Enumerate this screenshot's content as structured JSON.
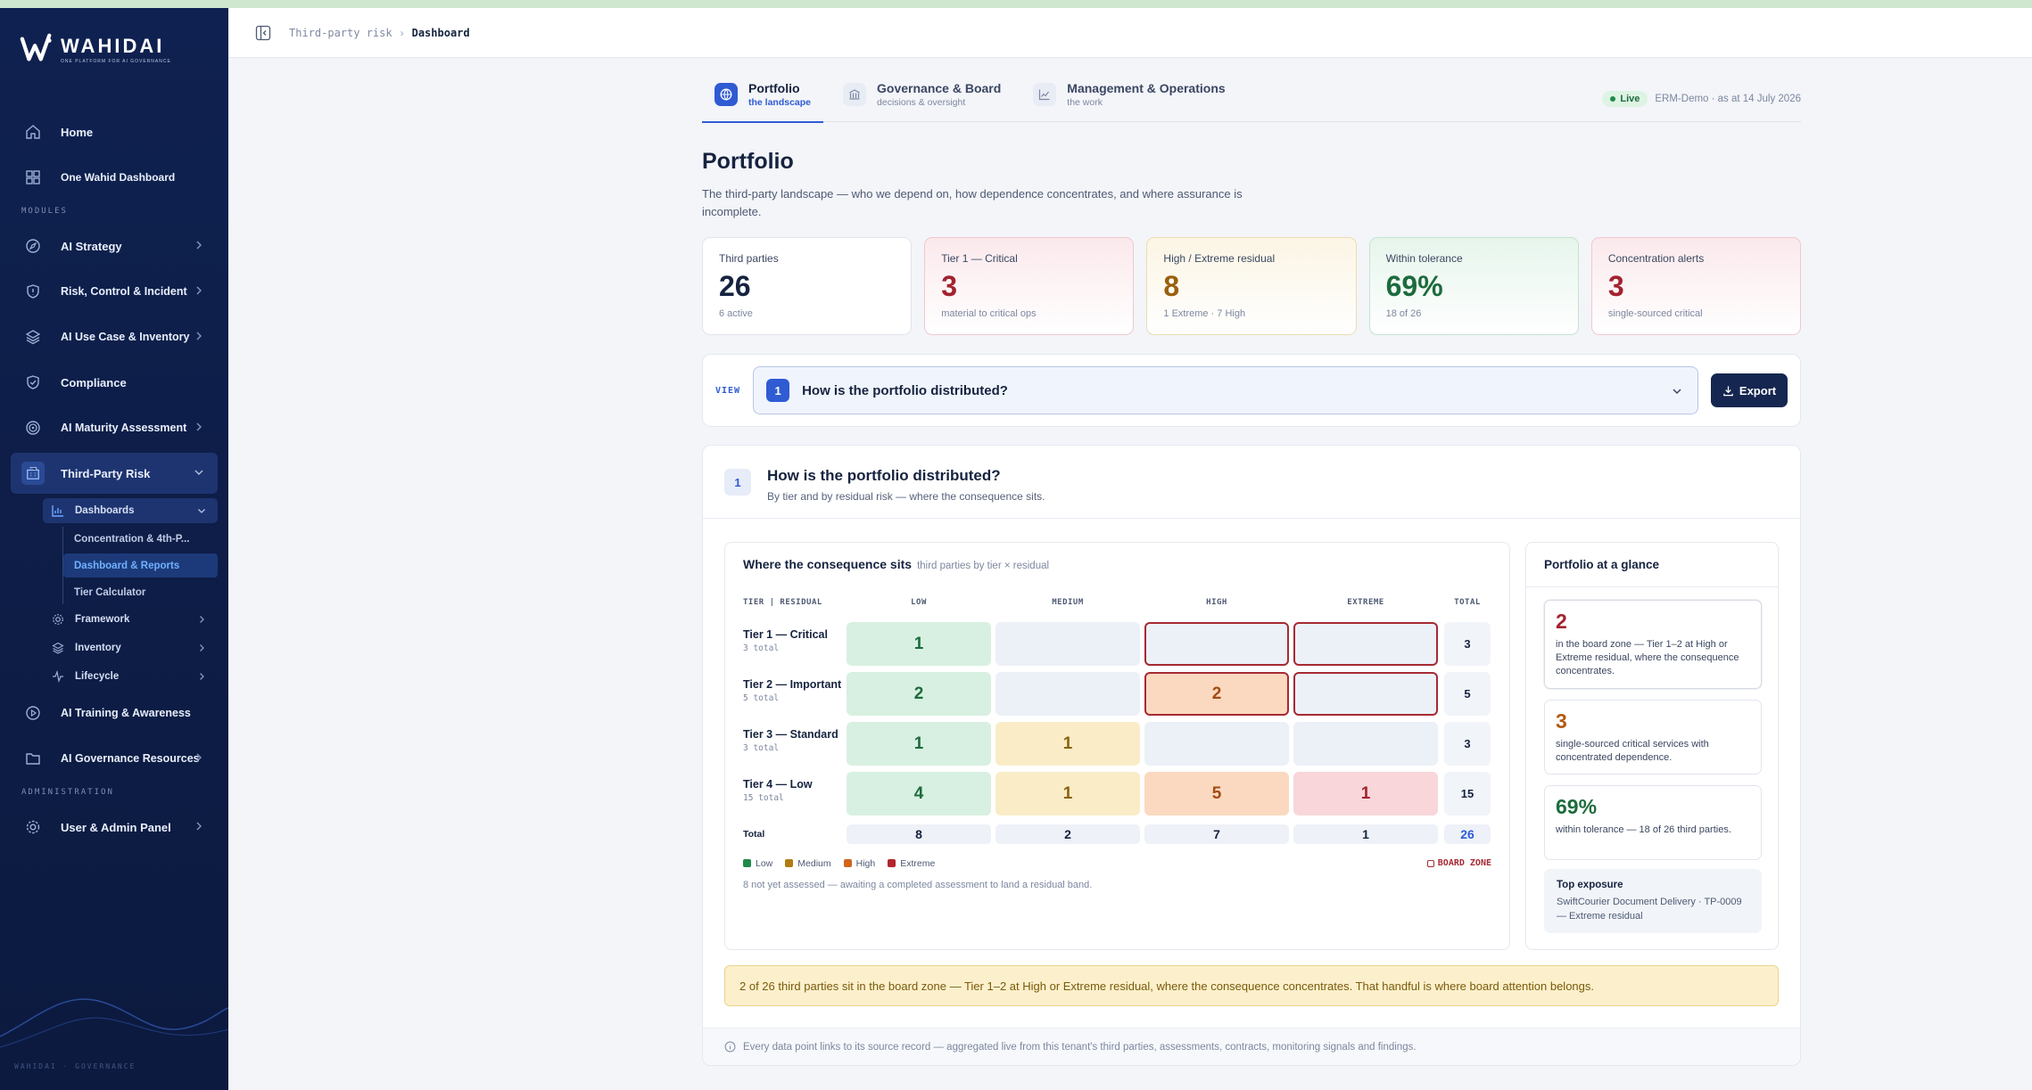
{
  "brand": {
    "name": "WAHIDAI",
    "tagline": "ONE PLATFORM FOR AI GOVERNANCE"
  },
  "sidebar": {
    "items_top": [
      {
        "label": "Home",
        "icon": "home-icon"
      },
      {
        "label": "One Wahid Dashboard",
        "icon": "grid-icon"
      }
    ],
    "modules_label": "MODULES",
    "modules": [
      {
        "label": "AI Strategy",
        "icon": "compass-icon",
        "chevron": true
      },
      {
        "label": "Risk, Control & Incident",
        "icon": "shield-alert-icon",
        "chevron": true
      },
      {
        "label": "AI Use Case & Inventory",
        "icon": "layers-icon",
        "chevron": true
      },
      {
        "label": "Compliance",
        "icon": "shield-check-icon",
        "chevron": false
      },
      {
        "label": "AI Maturity Assessment",
        "icon": "target-icon",
        "chevron": true
      }
    ],
    "tpr": {
      "label": "Third-Party Risk",
      "dashboards_label": "Dashboards",
      "dashboards": [
        "Concentration & 4th-P...",
        "Dashboard & Reports",
        "Tier Calculator"
      ],
      "others": [
        "Framework",
        "Inventory",
        "Lifecycle"
      ]
    },
    "modules_after": [
      {
        "label": "AI Training & Awareness",
        "icon": "play-circle-icon"
      },
      {
        "label": "AI Governance Resources",
        "icon": "folder-icon"
      }
    ],
    "admin_label": "ADMINISTRATION",
    "admin": {
      "label": "User & Admin Panel",
      "icon": "gear-icon"
    },
    "footer": "WAHIDAI · GOVERNANCE"
  },
  "breadcrumb": {
    "parent": "Third-party risk",
    "separator": "›",
    "current": "Dashboard"
  },
  "tabs": [
    {
      "label": "Portfolio",
      "sub": "the landscape",
      "icon": "globe-icon"
    },
    {
      "label": "Governance & Board",
      "sub": "decisions & oversight",
      "icon": "building-icon"
    },
    {
      "label": "Management & Operations",
      "sub": "the work",
      "icon": "chart-line-icon"
    }
  ],
  "status": {
    "live": "Live",
    "asat": "ERM-Demo · as at 14 July 2026"
  },
  "page": {
    "title": "Portfolio",
    "description": "The third-party landscape — who we depend on, how dependence concentrates, and where assurance is incomplete."
  },
  "kpis": [
    {
      "label": "Third parties",
      "value": "26",
      "sub": "6 active",
      "color": "#16233f"
    },
    {
      "label": "Tier 1 — Critical",
      "value": "3",
      "sub": "material to critical ops",
      "color": "#a3222f"
    },
    {
      "label": "High / Extreme residual",
      "value": "8",
      "sub": "1 Extreme · 7 High",
      "color": "#9a5f0c"
    },
    {
      "label": "Within tolerance",
      "value": "69%",
      "sub": "18 of 26",
      "color": "#1d6b3d"
    },
    {
      "label": "Concentration alerts",
      "value": "3",
      "sub": "single-sourced critical",
      "color": "#a3222f"
    }
  ],
  "view": {
    "label": "VIEW",
    "number": "1",
    "question": "How is the portfolio distributed?",
    "export": "Export"
  },
  "panel": {
    "number": "1",
    "title": "How is the portfolio distributed?",
    "subtitle": "By tier and by residual risk — where the consequence sits."
  },
  "grid": {
    "title": "Where the consequence sits",
    "title_sub": "third parties by tier × residual",
    "corner": "TIER | RESIDUAL",
    "columns": [
      "LOW",
      "MEDIUM",
      "HIGH",
      "EXTREME"
    ],
    "total_label": "TOTAL",
    "rows": [
      {
        "label": "Tier 1 — Critical",
        "sub": "3 total",
        "cells": [
          "1",
          "",
          "",
          ""
        ],
        "total": "3"
      },
      {
        "label": "Tier 2 — Important",
        "sub": "5 total",
        "cells": [
          "2",
          "",
          "2",
          ""
        ],
        "total": "5"
      },
      {
        "label": "Tier 3 — Standard",
        "sub": "3 total",
        "cells": [
          "1",
          "1",
          "",
          ""
        ],
        "total": "3"
      },
      {
        "label": "Tier 4 — Low",
        "sub": "15 total",
        "cells": [
          "4",
          "1",
          "5",
          "1"
        ],
        "total": "15"
      }
    ],
    "totals_label": "Total",
    "totals": [
      "8",
      "2",
      "7",
      "1"
    ],
    "grand_total": "26",
    "legend": [
      "Low",
      "Medium",
      "High",
      "Extreme"
    ],
    "legend_colors": [
      "#1f8a4c",
      "#b07d10",
      "#d0651c",
      "#b3262f"
    ],
    "board_zone": "BOARD ZONE",
    "note": "8 not yet assessed — awaiting a completed assessment to land a residual band."
  },
  "glance": {
    "title": "Portfolio at a glance",
    "items": [
      {
        "value": "2",
        "text": "in the board zone — Tier 1–2 at High or Extreme residual, where the consequence concentrates.",
        "color": "#a3222f"
      },
      {
        "value": "3",
        "text": "single-sourced critical services with concentrated dependence.",
        "color": "#b05a12"
      },
      {
        "value": "69%",
        "text": "within tolerance — 18 of 26 third parties.",
        "color": "#1d6b3d"
      }
    ],
    "top_title": "Top exposure",
    "top_text": "SwiftCourier Document Delivery · TP-0009 — Extreme residual"
  },
  "callout": "2 of 26 third parties sit in the board zone — Tier 1–2 at High or Extreme residual, where the consequence concentrates. That handful is where board attention belongs.",
  "footer_note": "Every data point links to its source record — aggregated live from this tenant's third parties, assessments, contracts, monitoring signals and findings."
}
